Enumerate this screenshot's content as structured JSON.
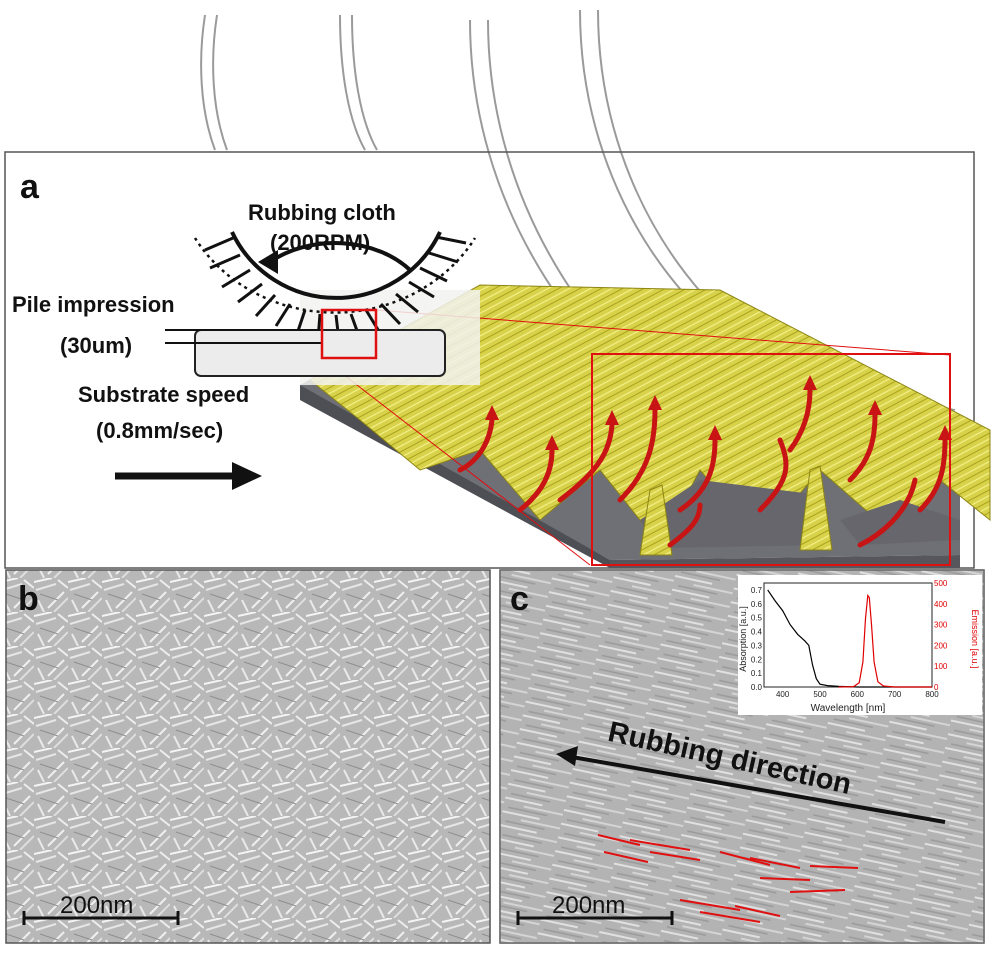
{
  "figure": {
    "panel_a": {
      "label": "a",
      "rubbing_cloth_line1": "Rubbing cloth",
      "rubbing_cloth_line2": "(200RPM)",
      "pile_impression_line1": "Pile impression",
      "pile_impression_line2": "(30um)",
      "substrate_speed_line1": "Substrate speed",
      "substrate_speed_line2": "(0.8mm/sec)"
    },
    "panel_b": {
      "label": "b",
      "scale_bar": "200nm"
    },
    "panel_c": {
      "label": "c",
      "scale_bar": "200nm",
      "rubbing_direction": "Rubbing direction",
      "inset": {
        "xlabel": "Wavelength [nm]",
        "ylabel_left": "Absorption [a.u.]",
        "ylabel_right": "Emission [a.u.]",
        "x_ticks": [
          "400",
          "500",
          "600",
          "700",
          "800"
        ],
        "y_left_ticks": [
          "0.0",
          "0.1",
          "0.2",
          "0.3",
          "0.4",
          "0.5",
          "0.6",
          "0.7"
        ],
        "y_right_ticks": [
          "0",
          "100",
          "200",
          "300",
          "400",
          "500"
        ]
      }
    }
  },
  "chart_data": {
    "type": "line",
    "xlabel": "Wavelength [nm]",
    "ylabel": "Absorption [a.u.]",
    "y2label": "Emission [a.u.]",
    "xlim": [
      350,
      800
    ],
    "ylim": [
      0,
      0.75
    ],
    "y2lim": [
      0,
      500
    ],
    "series": [
      {
        "axis": "left",
        "color": "#000000",
        "x": [
          360,
          380,
          400,
          420,
          440,
          460,
          470,
          480,
          490,
          500,
          520,
          550,
          600,
          700,
          800
        ],
        "y": [
          0.7,
          0.62,
          0.55,
          0.45,
          0.38,
          0.33,
          0.3,
          0.16,
          0.06,
          0.02,
          0.01,
          0.005,
          0.0,
          0.0,
          0.0
        ]
      },
      {
        "axis": "right",
        "color": "#e00000",
        "x": [
          550,
          590,
          605,
          615,
          622,
          628,
          632,
          638,
          645,
          655,
          670,
          700,
          800
        ],
        "y": [
          0,
          2,
          20,
          120,
          330,
          440,
          430,
          300,
          120,
          25,
          5,
          0,
          0
        ]
      }
    ]
  }
}
